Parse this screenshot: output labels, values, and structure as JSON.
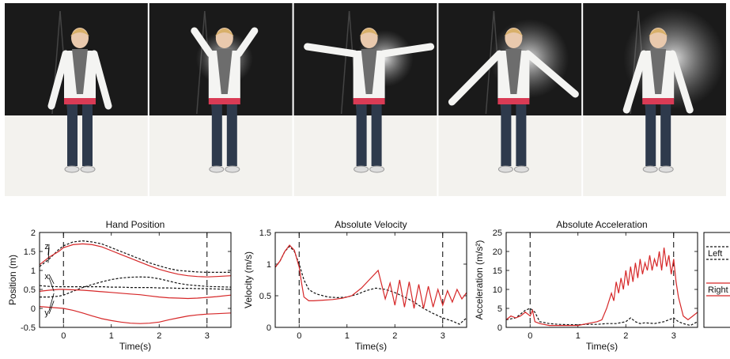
{
  "photo_strip": {
    "frame_count": 5,
    "colors": {
      "backdrop": "#1a1a1a",
      "floor": "#f3f2ee",
      "shirt": "#f4f4f2",
      "jeans": "#2e3a4c",
      "belt": "#d93b55",
      "hair": "#d8b06a"
    }
  },
  "chart_data": [
    {
      "type": "line",
      "title": "Hand Position",
      "xlabel": "Time(s)",
      "ylabel": "Position (m)",
      "xlim": [
        -0.5,
        3.5
      ],
      "ylim": [
        -0.5,
        2
      ],
      "xticks": [
        0,
        1,
        2,
        3
      ],
      "yticks": [
        -0.5,
        0,
        0.5,
        1,
        1.5,
        2
      ],
      "vlines": [
        0,
        3
      ],
      "annotations": [
        "z",
        "x",
        "y"
      ],
      "series": [
        {
          "style": "dashed",
          "color": "#111111",
          "x": [
            -0.5,
            -0.3,
            -0.1,
            0,
            0.2,
            0.4,
            0.6,
            0.8,
            1,
            1.2,
            1.4,
            1.6,
            1.8,
            2,
            2.2,
            2.4,
            2.6,
            2.8,
            3,
            3.2,
            3.5
          ],
          "y": [
            1.1,
            1.3,
            1.55,
            1.65,
            1.75,
            1.78,
            1.75,
            1.7,
            1.6,
            1.5,
            1.4,
            1.3,
            1.2,
            1.12,
            1.05,
            1,
            0.98,
            0.96,
            0.95,
            0.95,
            0.95
          ]
        },
        {
          "style": "solid",
          "color": "#d62728",
          "x": [
            -0.5,
            -0.3,
            -0.1,
            0,
            0.2,
            0.4,
            0.6,
            0.8,
            1,
            1.2,
            1.4,
            1.6,
            1.8,
            2,
            2.2,
            2.4,
            2.6,
            2.8,
            3,
            3.2,
            3.5
          ],
          "y": [
            1.15,
            1.35,
            1.5,
            1.6,
            1.68,
            1.7,
            1.68,
            1.62,
            1.52,
            1.42,
            1.32,
            1.22,
            1.12,
            1.03,
            0.96,
            0.9,
            0.86,
            0.84,
            0.83,
            0.84,
            0.86
          ]
        },
        {
          "style": "dashed",
          "color": "#111111",
          "x": [
            -0.5,
            -0.3,
            -0.1,
            0,
            0.2,
            0.4,
            0.6,
            0.8,
            1,
            1.2,
            1.4,
            1.6,
            1.8,
            2,
            2.2,
            2.4,
            2.6,
            2.8,
            3,
            3.2,
            3.5
          ],
          "y": [
            0.3,
            0.3,
            0.32,
            0.35,
            0.45,
            0.55,
            0.63,
            0.7,
            0.76,
            0.8,
            0.82,
            0.83,
            0.82,
            0.78,
            0.72,
            0.66,
            0.62,
            0.6,
            0.58,
            0.57,
            0.56
          ]
        },
        {
          "style": "dashed",
          "color": "#111111",
          "x": [
            -0.5,
            -0.3,
            -0.1,
            0,
            0.2,
            0.4,
            0.6,
            0.8,
            1,
            1.2,
            1.4,
            1.6,
            1.8,
            2,
            2.2,
            2.4,
            2.6,
            2.8,
            3,
            3.2,
            3.5
          ],
          "y": [
            0.6,
            0.58,
            0.57,
            0.57,
            0.57,
            0.57,
            0.57,
            0.57,
            0.56,
            0.56,
            0.55,
            0.55,
            0.55,
            0.54,
            0.54,
            0.53,
            0.53,
            0.52,
            0.52,
            0.51,
            0.5
          ]
        },
        {
          "style": "solid",
          "color": "#d62728",
          "x": [
            -0.5,
            -0.3,
            -0.1,
            0,
            0.2,
            0.4,
            0.6,
            0.8,
            1,
            1.2,
            1.4,
            1.6,
            1.8,
            2,
            2.2,
            2.4,
            2.6,
            2.8,
            3,
            3.2,
            3.5
          ],
          "y": [
            0.45,
            0.48,
            0.5,
            0.5,
            0.49,
            0.48,
            0.46,
            0.44,
            0.42,
            0.4,
            0.38,
            0.36,
            0.33,
            0.3,
            0.28,
            0.27,
            0.26,
            0.27,
            0.29,
            0.31,
            0.35
          ]
        },
        {
          "style": "solid",
          "color": "#d62728",
          "x": [
            -0.5,
            -0.3,
            -0.1,
            0,
            0.2,
            0.4,
            0.6,
            0.8,
            1,
            1.2,
            1.4,
            1.6,
            1.8,
            2,
            2.2,
            2.4,
            2.6,
            2.8,
            3,
            3.2,
            3.5
          ],
          "y": [
            0.05,
            0.03,
            0.01,
            0,
            -0.05,
            -0.12,
            -0.2,
            -0.27,
            -0.32,
            -0.36,
            -0.39,
            -0.4,
            -0.39,
            -0.36,
            -0.3,
            -0.25,
            -0.2,
            -0.17,
            -0.15,
            -0.14,
            -0.12
          ]
        }
      ]
    },
    {
      "type": "line",
      "title": "Absolute Velocity",
      "xlabel": "Time(s)",
      "ylabel": "Velocity (m/s)",
      "xlim": [
        -0.5,
        3.5
      ],
      "ylim": [
        0,
        1.5
      ],
      "xticks": [
        0,
        1,
        2,
        3
      ],
      "yticks": [
        0,
        0.5,
        1,
        1.5
      ],
      "vlines": [
        0,
        3
      ],
      "series": [
        {
          "style": "dashed",
          "color": "#111111",
          "x": [
            -0.5,
            -0.4,
            -0.3,
            -0.2,
            -0.1,
            0,
            0.1,
            0.2,
            0.3,
            0.4,
            0.6,
            0.8,
            1,
            1.2,
            1.4,
            1.6,
            1.8,
            2,
            2.2,
            2.4,
            2.6,
            2.8,
            3,
            3.2,
            3.35,
            3.5
          ],
          "y": [
            0.95,
            1.05,
            1.2,
            1.28,
            1.2,
            1,
            0.75,
            0.6,
            0.55,
            0.52,
            0.48,
            0.47,
            0.48,
            0.52,
            0.58,
            0.62,
            0.6,
            0.55,
            0.48,
            0.4,
            0.3,
            0.22,
            0.15,
            0.1,
            0.05,
            0.15
          ]
        },
        {
          "style": "solid",
          "color": "#d62728",
          "x": [
            -0.5,
            -0.4,
            -0.3,
            -0.2,
            -0.1,
            0,
            0.05,
            0.1,
            0.2,
            0.3,
            0.5,
            0.7,
            0.9,
            1.1,
            1.3,
            1.5,
            1.65,
            1.7,
            1.8,
            1.9,
            2,
            2.1,
            2.2,
            2.3,
            2.4,
            2.5,
            2.6,
            2.7,
            2.8,
            2.9,
            3,
            3.1,
            3.2,
            3.3,
            3.4,
            3.5
          ],
          "y": [
            0.95,
            1.05,
            1.2,
            1.3,
            1.22,
            0.95,
            0.7,
            0.48,
            0.42,
            0.42,
            0.43,
            0.44,
            0.46,
            0.5,
            0.62,
            0.78,
            0.9,
            0.75,
            0.45,
            0.7,
            0.35,
            0.75,
            0.32,
            0.72,
            0.3,
            0.68,
            0.3,
            0.65,
            0.32,
            0.6,
            0.35,
            0.58,
            0.4,
            0.6,
            0.45,
            0.55
          ]
        }
      ]
    },
    {
      "type": "line",
      "title": "Absolute Acceleration",
      "xlabel": "Time(s)",
      "ylabel": "Acceleration (m/s²)",
      "xlim": [
        -0.5,
        3.5
      ],
      "ylim": [
        0,
        25
      ],
      "xticks": [
        0,
        1,
        2,
        3
      ],
      "yticks": [
        0,
        5,
        10,
        15,
        20,
        25
      ],
      "vlines": [
        0,
        3
      ],
      "series": [
        {
          "style": "dashed",
          "color": "#111111",
          "x": [
            -0.5,
            -0.3,
            -0.1,
            0,
            0.1,
            0.2,
            0.4,
            0.6,
            0.8,
            1,
            1.2,
            1.4,
            1.6,
            1.8,
            2,
            2.1,
            2.2,
            2.3,
            2.4,
            2.6,
            2.8,
            3,
            3.1,
            3.2,
            3.35,
            3.5
          ],
          "y": [
            2,
            2.5,
            4.5,
            5,
            4,
            1.5,
            1,
            0.8,
            0.7,
            0.7,
            0.8,
            0.8,
            1,
            1,
            1.5,
            2.5,
            1.5,
            1,
            1.2,
            1,
            1.5,
            2.5,
            1.5,
            1,
            0.5,
            1.5
          ]
        },
        {
          "style": "solid",
          "color": "#d62728",
          "x": [
            -0.5,
            -0.4,
            -0.3,
            -0.2,
            -0.1,
            0,
            0.05,
            0.1,
            0.2,
            0.4,
            0.6,
            0.8,
            1,
            1.2,
            1.4,
            1.5,
            1.6,
            1.7,
            1.75,
            1.8,
            1.85,
            1.9,
            1.95,
            2,
            2.05,
            2.1,
            2.15,
            2.2,
            2.25,
            2.3,
            2.35,
            2.4,
            2.45,
            2.5,
            2.55,
            2.6,
            2.65,
            2.7,
            2.75,
            2.8,
            2.85,
            2.9,
            2.95,
            3,
            3.05,
            3.1,
            3.2,
            3.3,
            3.4,
            3.5
          ],
          "y": [
            2,
            3,
            2.5,
            3,
            4,
            3,
            4.5,
            1.5,
            1,
            0.5,
            0.5,
            0.5,
            0.5,
            1,
            1.5,
            2,
            5,
            9,
            7,
            12,
            9,
            13,
            10,
            15,
            11,
            16,
            12,
            17,
            13,
            18,
            14,
            17,
            15,
            19,
            15,
            18,
            16,
            20,
            15,
            21,
            16,
            19,
            14,
            18,
            12,
            8,
            3,
            2,
            3,
            4
          ]
        }
      ]
    }
  ],
  "legend": {
    "entries": [
      {
        "label": "Left",
        "style": "dashed",
        "color": "#111111"
      },
      {
        "label": "Right",
        "style": "solid",
        "color": "#d62728"
      }
    ]
  }
}
